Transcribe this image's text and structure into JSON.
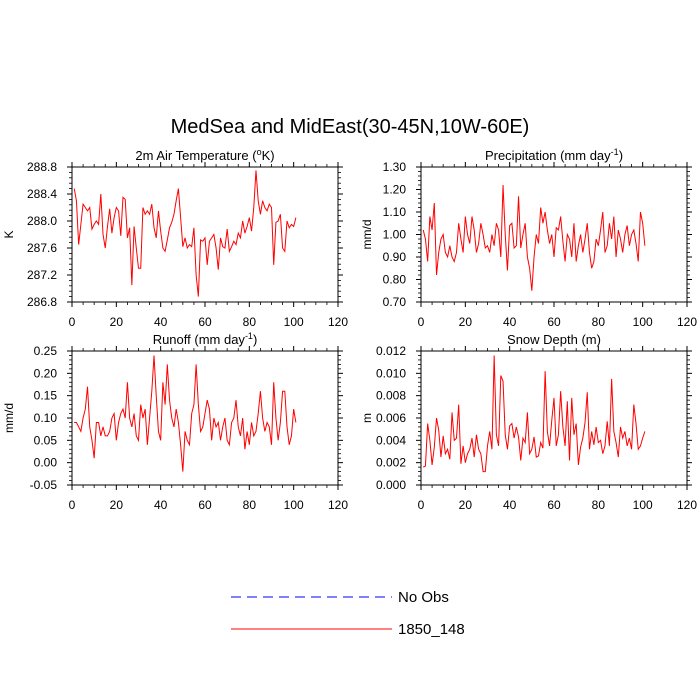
{
  "main_title": "MedSea and MidEast(30-45N,10W-60E)",
  "chart_data": [
    {
      "id": "temperature",
      "type": "line",
      "title": "2m Air Temperature (°K)",
      "title_parts": [
        "2m Air Temperature (",
        "o",
        "K)"
      ],
      "xlabel": "",
      "ylabel": "K",
      "xlim": [
        0,
        120
      ],
      "ylim": [
        286.8,
        288.8
      ],
      "xticks": [
        0,
        20,
        40,
        60,
        80,
        100,
        120
      ],
      "yticks": [
        286.8,
        287.2,
        287.6,
        288.0,
        288.4,
        288.8
      ],
      "ytick_labels": [
        "286.8",
        "287.2",
        "287.6",
        "288.0",
        "288.4",
        "288.8"
      ],
      "x_start": 1,
      "series": [
        {
          "name": "1850_148",
          "color": "#ff0000",
          "values": [
            288.48,
            288.3,
            287.65,
            287.95,
            288.25,
            288.2,
            288.15,
            288.2,
            287.88,
            287.95,
            288.0,
            287.95,
            288.4,
            287.8,
            287.6,
            287.92,
            288.18,
            287.82,
            288.05,
            288.2,
            288.15,
            287.78,
            288.35,
            288.32,
            287.75,
            287.9,
            287.05,
            287.92,
            287.6,
            287.3,
            287.3,
            288.2,
            288.1,
            288.15,
            288.1,
            288.25,
            287.9,
            287.75,
            288.15,
            287.85,
            287.6,
            287.55,
            287.72,
            287.9,
            287.98,
            288.1,
            288.3,
            288.48,
            288.05,
            287.62,
            287.75,
            287.6,
            287.65,
            287.62,
            287.9,
            287.2,
            286.88,
            287.72,
            287.7,
            287.75,
            287.35,
            287.7,
            287.75,
            287.8,
            287.6,
            287.28,
            287.75,
            287.62,
            287.6,
            287.88,
            287.55,
            287.62,
            287.7,
            287.65,
            287.82,
            287.75,
            288.0,
            287.82,
            287.92,
            288.05,
            287.85,
            288.2,
            288.75,
            288.3,
            288.1,
            288.3,
            288.2,
            288.15,
            288.25,
            288.2,
            287.35,
            287.98,
            288.0,
            288.1,
            287.6,
            287.55,
            288.0,
            287.9,
            287.95,
            287.92,
            288.05
          ]
        }
      ]
    },
    {
      "id": "precipitation",
      "type": "line",
      "title": "Precipitation (mm day-1)",
      "title_parts": [
        "Precipitation (mm day",
        "-1",
        ")"
      ],
      "xlabel": "",
      "ylabel": "mm/d",
      "xlim": [
        0,
        120
      ],
      "ylim": [
        0.7,
        1.3
      ],
      "xticks": [
        0,
        20,
        40,
        60,
        80,
        100,
        120
      ],
      "yticks": [
        0.7,
        0.8,
        0.9,
        1.0,
        1.1,
        1.2,
        1.3
      ],
      "ytick_labels": [
        "0.70",
        "0.80",
        "0.90",
        "1.00",
        "1.10",
        "1.20",
        "1.30"
      ],
      "x_start": 1,
      "series": [
        {
          "name": "1850_148",
          "color": "#ff0000",
          "values": [
            1.02,
            0.98,
            0.88,
            1.08,
            1.02,
            1.14,
            0.82,
            0.92,
            0.98,
            1.0,
            0.92,
            0.9,
            0.95,
            0.9,
            0.88,
            0.92,
            1.05,
            0.98,
            0.92,
            1.08,
            1.0,
            0.96,
            1.08,
            1.02,
            0.92,
            0.96,
            1.05,
            1.0,
            0.94,
            0.95,
            0.92,
            1.0,
            0.95,
            1.05,
            1.02,
            0.9,
            1.22,
            1.0,
            0.84,
            1.04,
            1.05,
            0.94,
            0.95,
            1.17,
            0.94,
            1.0,
            1.05,
            0.9,
            0.85,
            0.75,
            0.9,
            1.0,
            0.96,
            1.12,
            1.05,
            1.1,
            1.02,
            0.96,
            1.0,
            0.9,
            1.03,
            1.02,
            1.08,
            0.97,
            0.88,
            1.0,
            0.98,
            0.9,
            1.05,
            0.88,
            0.95,
            1.0,
            0.92,
            0.98,
            1.05,
            0.92,
            0.85,
            0.88,
            0.98,
            0.95,
            1.02,
            1.1,
            0.92,
            0.95,
            1.05,
            0.98,
            1.08,
            0.9,
            1.02,
            0.98,
            0.92,
            1.0,
            1.04,
            0.95,
            1.0,
            1.02,
            0.96,
            0.88,
            1.1,
            1.05,
            0.95
          ]
        }
      ]
    },
    {
      "id": "runoff",
      "type": "line",
      "title": "Runoff (mm day-1)",
      "title_parts": [
        "Runoff (mm day",
        "-1",
        ")"
      ],
      "xlabel": "",
      "ylabel": "mm/d",
      "xlim": [
        0,
        120
      ],
      "ylim": [
        -0.05,
        0.25
      ],
      "xticks": [
        0,
        20,
        40,
        60,
        80,
        100,
        120
      ],
      "yticks": [
        -0.05,
        0.0,
        0.05,
        0.1,
        0.15,
        0.2,
        0.25
      ],
      "ytick_labels": [
        "-0.05",
        "0.00",
        "0.05",
        "0.10",
        "0.15",
        "0.20",
        "0.25"
      ],
      "x_start": 1,
      "series": [
        {
          "name": "1850_148",
          "color": "#ff0000",
          "values": [
            0.09,
            0.09,
            0.08,
            0.07,
            0.1,
            0.12,
            0.17,
            0.08,
            0.05,
            0.01,
            0.09,
            0.09,
            0.06,
            0.08,
            0.06,
            0.06,
            0.07,
            0.1,
            0.11,
            0.05,
            0.09,
            0.11,
            0.12,
            0.1,
            0.18,
            0.1,
            0.08,
            0.11,
            0.06,
            0.05,
            0.13,
            0.1,
            0.12,
            0.04,
            0.1,
            0.16,
            0.24,
            0.15,
            0.07,
            0.05,
            0.18,
            0.13,
            0.22,
            0.14,
            0.1,
            0.08,
            0.12,
            0.09,
            0.04,
            -0.02,
            0.07,
            0.05,
            0.04,
            0.11,
            0.13,
            0.22,
            0.13,
            0.07,
            0.08,
            0.11,
            0.14,
            0.12,
            0.05,
            0.1,
            0.08,
            0.09,
            0.05,
            0.08,
            0.1,
            0.05,
            0.04,
            0.09,
            0.1,
            0.14,
            0.08,
            0.06,
            0.1,
            0.03,
            0.07,
            0.04,
            0.09,
            0.06,
            0.07,
            0.11,
            0.16,
            0.1,
            0.07,
            0.09,
            0.08,
            0.04,
            0.18,
            0.1,
            0.05,
            0.09,
            0.16,
            0.16,
            0.08,
            0.04,
            0.06,
            0.12,
            0.09
          ]
        }
      ]
    },
    {
      "id": "snow",
      "type": "line",
      "title": "Snow Depth (m)",
      "title_parts": [
        "Snow Depth (m)",
        "",
        ""
      ],
      "xlabel": "",
      "ylabel": "m",
      "xlim": [
        0,
        120
      ],
      "ylim": [
        0.0,
        0.012
      ],
      "xticks": [
        0,
        20,
        40,
        60,
        80,
        100,
        120
      ],
      "yticks": [
        0.0,
        0.002,
        0.004,
        0.006,
        0.008,
        0.01,
        0.012
      ],
      "ytick_labels": [
        "0.000",
        "0.002",
        "0.004",
        "0.006",
        "0.008",
        "0.010",
        "0.012"
      ],
      "x_start": 1,
      "series": [
        {
          "name": "1850_148",
          "color": "#ff0000",
          "values": [
            0.0016,
            0.0017,
            0.0055,
            0.004,
            0.0018,
            0.0034,
            0.006,
            0.0049,
            0.0025,
            0.0044,
            0.0028,
            0.0032,
            0.0023,
            0.0065,
            0.004,
            0.0042,
            0.0072,
            0.0019,
            0.0035,
            0.002,
            0.0028,
            0.0032,
            0.0042,
            0.0025,
            0.0045,
            0.0032,
            0.0028,
            0.0012,
            0.0012,
            0.0035,
            0.0048,
            0.0032,
            0.0116,
            0.0045,
            0.0035,
            0.0098,
            0.0093,
            0.0045,
            0.0032,
            0.0053,
            0.0055,
            0.0042,
            0.0052,
            0.0043,
            0.0022,
            0.0042,
            0.0038,
            0.0065,
            0.0028,
            0.0032,
            0.0043,
            0.0025,
            0.0026,
            0.0038,
            0.0033,
            0.0102,
            0.0048,
            0.0035,
            0.0058,
            0.0078,
            0.0035,
            0.0045,
            0.0084,
            0.0052,
            0.0035,
            0.0075,
            0.0022,
            0.0078,
            0.0045,
            0.0055,
            0.0018,
            0.0034,
            0.0042,
            0.0056,
            0.0083,
            0.0032,
            0.0048,
            0.0036,
            0.0052,
            0.0038,
            0.004,
            0.0028,
            0.0035,
            0.0057,
            0.0035,
            0.0095,
            0.0048,
            0.0038,
            0.0025,
            0.0052,
            0.0042,
            0.0048,
            0.0035,
            0.0042,
            0.0032,
            0.0072,
            0.0055,
            0.0032,
            0.0035,
            0.0042,
            0.0048
          ]
        }
      ]
    }
  ],
  "legend": {
    "items": [
      {
        "label": "No Obs",
        "color": "#0000ff",
        "style": "dashed"
      },
      {
        "label": "1850_148",
        "color": "#ff0000",
        "style": "solid"
      }
    ]
  }
}
